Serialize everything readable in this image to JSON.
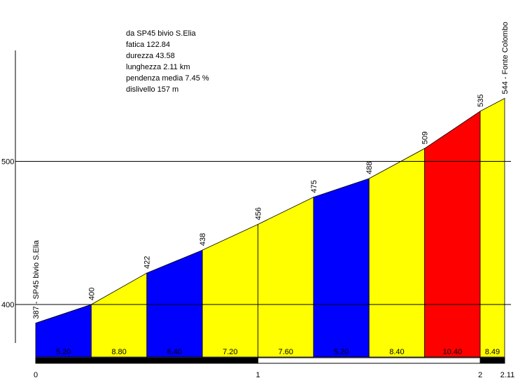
{
  "info": {
    "line1": "da SP45 bivio S.Elia",
    "line2": "fatica 122.84",
    "line3": "durezza 43.58",
    "line4": "lunghezza 2.11 km",
    "line5": "pendenza media 7.45 %",
    "line6": "dislivello 157 m"
  },
  "chart_data": {
    "type": "area",
    "title": "",
    "xlabel": "",
    "ylabel": "",
    "xlim": [
      0,
      2.11
    ],
    "ylim": [
      370,
      560
    ],
    "grid_y": [
      400,
      500
    ],
    "y_tick_labels": [
      "400",
      "500"
    ],
    "x_ticks": [
      0,
      1,
      2,
      2.11
    ],
    "x_tick_labels": [
      "0",
      "1",
      "2",
      "2.11"
    ],
    "points": [
      {
        "x": 0,
        "y": 387
      },
      {
        "x": 0.25,
        "y": 400
      },
      {
        "x": 0.5,
        "y": 422
      },
      {
        "x": 0.75,
        "y": 438
      },
      {
        "x": 1.0,
        "y": 456
      },
      {
        "x": 1.25,
        "y": 475
      },
      {
        "x": 1.5,
        "y": 488
      },
      {
        "x": 1.75,
        "y": 509
      },
      {
        "x": 2.0,
        "y": 535
      },
      {
        "x": 2.11,
        "y": 544
      }
    ],
    "point_labels": [
      "387 - SP45 bivio S.Elia",
      "400",
      "422",
      "438",
      "456",
      "475",
      "488",
      "509",
      "535",
      "544 - Fonte Colombo"
    ],
    "segments": [
      {
        "gradient": "5.20",
        "color": "#0000ff"
      },
      {
        "gradient": "8.80",
        "color": "#ffff00"
      },
      {
        "gradient": "6.40",
        "color": "#0000ff"
      },
      {
        "gradient": "7.20",
        "color": "#ffff00"
      },
      {
        "gradient": "7.60",
        "color": "#ffff00"
      },
      {
        "gradient": "5.20",
        "color": "#0000ff"
      },
      {
        "gradient": "8.40",
        "color": "#ffff00"
      },
      {
        "gradient": "10.40",
        "color": "#ff0000"
      },
      {
        "gradient": "8.49",
        "color": "#ffff00"
      }
    ],
    "km_bar": [
      {
        "from": 0,
        "to": 1,
        "color": "#000000"
      },
      {
        "from": 1,
        "to": 2,
        "color": "#ffffff"
      },
      {
        "from": 2,
        "to": 2.11,
        "color": "#000000"
      }
    ]
  }
}
